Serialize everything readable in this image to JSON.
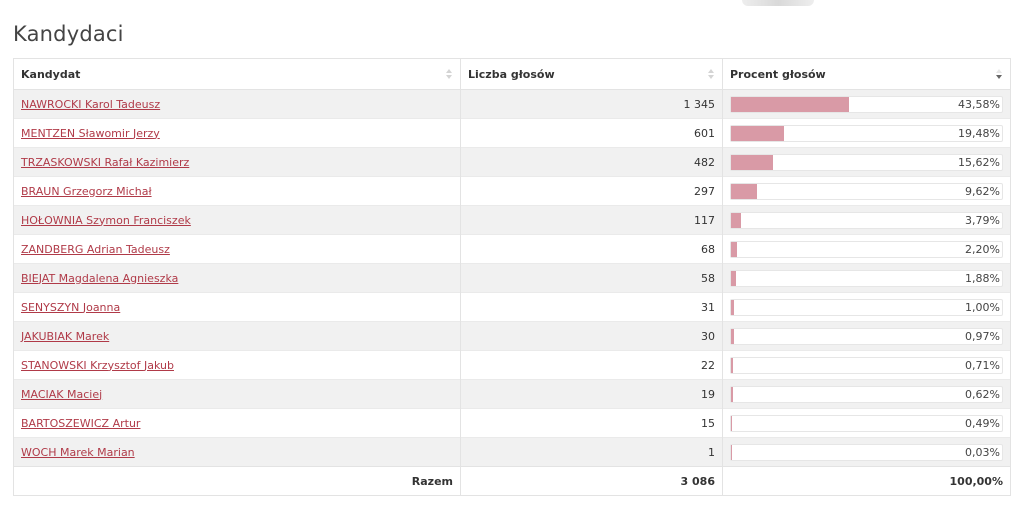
{
  "section_title": "Kandydaci",
  "table": {
    "headers": [
      "Kandydat",
      "Liczba głosów",
      "Procent głosów"
    ],
    "rows": [
      {
        "name": "NAWROCKI Karol Tadeusz",
        "votes": "1 345",
        "percent_label": "43,58%",
        "percent": 43.58
      },
      {
        "name": "MENTZEN Sławomir Jerzy",
        "votes": "601",
        "percent_label": "19,48%",
        "percent": 19.48
      },
      {
        "name": "TRZASKOWSKI Rafał Kazimierz",
        "votes": "482",
        "percent_label": "15,62%",
        "percent": 15.62
      },
      {
        "name": "BRAUN Grzegorz Michał",
        "votes": "297",
        "percent_label": "9,62%",
        "percent": 9.62
      },
      {
        "name": "HOŁOWNIA Szymon Franciszek",
        "votes": "117",
        "percent_label": "3,79%",
        "percent": 3.79
      },
      {
        "name": "ZANDBERG Adrian Tadeusz",
        "votes": "68",
        "percent_label": "2,20%",
        "percent": 2.2
      },
      {
        "name": "BIEJAT Magdalena Agnieszka",
        "votes": "58",
        "percent_label": "1,88%",
        "percent": 1.88
      },
      {
        "name": "SENYSZYN Joanna",
        "votes": "31",
        "percent_label": "1,00%",
        "percent": 1.0
      },
      {
        "name": "JAKUBIAK Marek",
        "votes": "30",
        "percent_label": "0,97%",
        "percent": 0.97
      },
      {
        "name": "STANOWSKI Krzysztof Jakub",
        "votes": "22",
        "percent_label": "0,71%",
        "percent": 0.71
      },
      {
        "name": "MACIAK Maciej",
        "votes": "19",
        "percent_label": "0,62%",
        "percent": 0.62
      },
      {
        "name": "BARTOSZEWICZ Artur",
        "votes": "15",
        "percent_label": "0,49%",
        "percent": 0.49
      },
      {
        "name": "WOCH Marek Marian",
        "votes": "1",
        "percent_label": "0,03%",
        "percent": 0.03
      }
    ],
    "footer": {
      "label": "Razem",
      "votes": "3 086",
      "percent": "100,00%"
    },
    "sort": {
      "column": "Procent głosów",
      "direction": "descending"
    }
  },
  "colors": {
    "bar": "#d99aa6",
    "link": "#b03a48"
  }
}
